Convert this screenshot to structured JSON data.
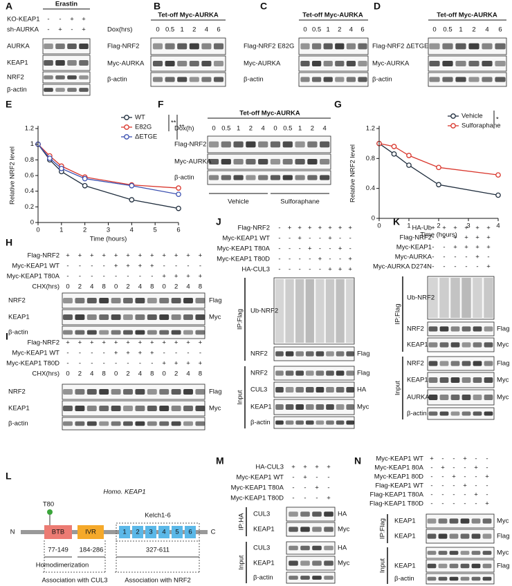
{
  "panels": [
    {
      "letter": "A",
      "title": "Erastin",
      "conditions": [
        {
          "label": "KO-KEAP1",
          "marks": [
            "-",
            "-",
            "+",
            "+"
          ]
        },
        {
          "label": "sh-AURKA",
          "marks": [
            "-",
            "+",
            "-",
            "+"
          ]
        }
      ],
      "rows": [
        {
          "label": "AURKA"
        },
        {
          "label": "KEAP1"
        },
        {
          "label": "NRF2"
        },
        {
          "label": "β-actin"
        }
      ]
    },
    {
      "letter": "B",
      "title": "Tet-off Myc-AURKA",
      "conditions": [
        {
          "label": "Dox(hrs)",
          "marks": [
            "0",
            "0.5",
            "1",
            "2",
            "4",
            "6"
          ]
        }
      ],
      "rows": [
        {
          "label": "Flag-NRF2"
        },
        {
          "label": "Myc-AURKA"
        },
        {
          "label": "β-actin"
        }
      ]
    },
    {
      "letter": "C",
      "title": "Tet-off Myc-AURKA",
      "conditions": [
        {
          "label": null,
          "marks": [
            "0",
            "0.5",
            "1",
            "2",
            "4",
            "6"
          ]
        }
      ],
      "rows": [
        {
          "label": "Flag-NRF2 E82G"
        },
        {
          "label": "Myc-AURKA"
        },
        {
          "label": "β-actin"
        }
      ]
    },
    {
      "letter": "D",
      "title": "Tet-off Myc-AURKA",
      "conditions": [
        {
          "label": null,
          "marks": [
            "0",
            "0.5",
            "1",
            "2",
            "4",
            "6"
          ]
        }
      ],
      "rows": [
        {
          "label": "Flag-NRF2 ΔETGE"
        },
        {
          "label": "Myc-AURKA"
        },
        {
          "label": "β-actin"
        }
      ]
    },
    {
      "letter": "F",
      "title": "Tet-off Myc-AURKA",
      "conditions": [
        {
          "label": "Dox(h)",
          "marks": [
            "0",
            "0.5",
            "1",
            "2",
            "4",
            "0",
            "0.5",
            "1",
            "2",
            "4"
          ]
        }
      ],
      "rows": [
        {
          "label": "Flag-NRF2"
        },
        {
          "label": "Myc-AURKA"
        },
        {
          "label": "β-actin"
        }
      ],
      "sub_labels": [
        "Vehicle",
        "Sulforaphane"
      ]
    },
    {
      "letter": "H",
      "conditions": [
        {
          "label": "Flag-NRF2",
          "marks": [
            "+",
            "+",
            "+",
            "+",
            "+",
            "+",
            "+",
            "+",
            "+",
            "+",
            "+",
            "+"
          ]
        },
        {
          "label": "Myc-KEAP1 WT",
          "marks": [
            "-",
            "-",
            "-",
            "-",
            "+",
            "+",
            "+",
            "+",
            "-",
            "-",
            "-",
            "-"
          ]
        },
        {
          "label": "Myc-KEAP1 T80A",
          "marks": [
            "-",
            "-",
            "-",
            "-",
            "-",
            "-",
            "-",
            "-",
            "+",
            "+",
            "+",
            "+"
          ]
        },
        {
          "label": "CHX(hrs)",
          "marks": [
            "0",
            "2",
            "4",
            "8",
            "0",
            "2",
            "4",
            "8",
            "0",
            "2",
            "4",
            "8"
          ]
        }
      ],
      "rows": [
        {
          "label": "NRF2",
          "tag": "Flag"
        },
        {
          "label": "KEAP1",
          "tag": "Myc"
        },
        {
          "label": "β-actin"
        }
      ]
    },
    {
      "letter": "I",
      "conditions": [
        {
          "label": "Flag-NRF2",
          "marks": [
            "+",
            "+",
            "+",
            "+",
            "+",
            "+",
            "+",
            "+",
            "+",
            "+",
            "+",
            "+"
          ]
        },
        {
          "label": "Myc-KEAP1 WT",
          "marks": [
            "-",
            "-",
            "-",
            "-",
            "+",
            "+",
            "+",
            "+",
            "-",
            "-",
            "-",
            "-"
          ]
        },
        {
          "label": "Myc-KEAP1 T80D",
          "marks": [
            "-",
            "-",
            "-",
            "-",
            "-",
            "-",
            "-",
            "-",
            "+",
            "+",
            "+",
            "+"
          ]
        },
        {
          "label": "CHX(hrs)",
          "marks": [
            "0",
            "2",
            "4",
            "8",
            "0",
            "2",
            "4",
            "8",
            "0",
            "2",
            "4",
            "8"
          ]
        }
      ],
      "rows": [
        {
          "label": "NRF2",
          "tag": "Flag"
        },
        {
          "label": "KEAP1",
          "tag": "Myc"
        },
        {
          "label": "β-actin"
        }
      ]
    },
    {
      "letter": "J",
      "conditions": [
        {
          "label": "Flag-NRF2",
          "marks": [
            "-",
            "+",
            "+",
            "+",
            "+",
            "+",
            "+",
            "+"
          ]
        },
        {
          "label": "Myc-KEAP1 WT",
          "marks": [
            "-",
            "-",
            "+",
            "-",
            "-",
            "+",
            "-",
            "-"
          ]
        },
        {
          "label": "Myc-KEAP1 T80A",
          "marks": [
            "-",
            "-",
            "-",
            "+",
            "-",
            "-",
            "+",
            "-"
          ]
        },
        {
          "label": "Myc-KEAP1 T80D",
          "marks": [
            "-",
            "-",
            "-",
            "-",
            "+",
            "-",
            "-",
            "+"
          ]
        },
        {
          "label": "HA-CUL3",
          "marks": [
            "-",
            "-",
            "-",
            "-",
            "-",
            "+",
            "+",
            "+"
          ]
        }
      ],
      "groups": [
        {
          "label": "IP:Flag",
          "rows": [
            {
              "label": "Ub-NRF2"
            },
            {
              "label": "NRF2",
              "tag": "Flag"
            }
          ]
        },
        {
          "label": "Input",
          "rows": [
            {
              "label": "NRF2",
              "tag": "Flag"
            },
            {
              "label": "CUL3",
              "tag": "HA"
            },
            {
              "label": "KEAP1",
              "tag": "Myc"
            },
            {
              "label": "β-actin"
            }
          ]
        }
      ]
    },
    {
      "letter": "K",
      "conditions": [
        {
          "label": "HA-Ub",
          "marks": [
            "+",
            "+",
            "+",
            "+",
            "+",
            "+"
          ]
        },
        {
          "label": "Flag-NRF2",
          "marks": [
            "-",
            "+",
            "+",
            "+",
            "+",
            "+"
          ]
        },
        {
          "label": "Myc-KEAP1",
          "marks": [
            "-",
            "-",
            "+",
            "+",
            "+",
            "+"
          ]
        },
        {
          "label": "Myc-AURKA",
          "marks": [
            "-",
            "-",
            "-",
            "-",
            "+",
            "-"
          ]
        },
        {
          "label": "Myc-AURKA D274N",
          "marks": [
            "-",
            "-",
            "-",
            "-",
            "-",
            "+"
          ]
        }
      ],
      "groups": [
        {
          "label": "IP:Flag",
          "rows": [
            {
              "label": "Ub-NRF2"
            },
            {
              "label": "NRF2",
              "tag": "Flag"
            },
            {
              "label": "KEAP1",
              "tag": "Myc"
            }
          ]
        },
        {
          "label": "Input",
          "rows": [
            {
              "label": "NRF2",
              "tag": "Flag"
            },
            {
              "label": "KEAP1",
              "tag": "Myc"
            },
            {
              "label": "AURKA",
              "tag": "Myc"
            },
            {
              "label": "β-actin"
            }
          ]
        }
      ]
    },
    {
      "letter": "M",
      "conditions": [
        {
          "label": "HA-CUL3",
          "marks": [
            "+",
            "+",
            "+",
            "+"
          ]
        },
        {
          "label": "Myc-KEAP1 WT",
          "marks": [
            "-",
            "+",
            "-",
            "-"
          ]
        },
        {
          "label": "Myc-KEAP1 T80A",
          "marks": [
            "-",
            "-",
            "+",
            "-"
          ]
        },
        {
          "label": "Myc-KEAP1 T80D",
          "marks": [
            "-",
            "-",
            "-",
            "+"
          ]
        }
      ],
      "groups": [
        {
          "label": "IP:HA",
          "rows": [
            {
              "label": "CUL3",
              "tag": "HA"
            },
            {
              "label": "KEAP1",
              "tag": "Myc"
            }
          ]
        },
        {
          "label": "Input",
          "rows": [
            {
              "label": "CUL3",
              "tag": "HA"
            },
            {
              "label": "KEAP1",
              "tag": "Myc"
            },
            {
              "label": "β-actin"
            }
          ]
        }
      ]
    },
    {
      "letter": "N",
      "conditions": [
        {
          "label": "Myc-KEAP1 WT",
          "marks": [
            "+",
            "-",
            "-",
            "+",
            "-",
            "-"
          ]
        },
        {
          "label": "Myc-KEAP1 80A",
          "marks": [
            "-",
            "+",
            "-",
            "-",
            "+",
            "-"
          ]
        },
        {
          "label": "Myc-KEAP1 80D",
          "marks": [
            "-",
            "-",
            "+",
            "-",
            "-",
            "+"
          ]
        },
        {
          "label": "Flag-KEAP1 WT",
          "marks": [
            "-",
            "-",
            "-",
            "+",
            "-",
            "-"
          ]
        },
        {
          "label": "Flag-KEAP1 T80A",
          "marks": [
            "-",
            "-",
            "-",
            "-",
            "+",
            "-"
          ]
        },
        {
          "label": "Flag-KEAP1 T80D",
          "marks": [
            "-",
            "-",
            "-",
            "-",
            "-",
            "+"
          ]
        }
      ],
      "groups": [
        {
          "label": "IP:Flag",
          "rows": [
            {
              "label": "KEAP1",
              "tag": "Myc"
            },
            {
              "label": "KEAP1",
              "tag": "Flag"
            }
          ]
        },
        {
          "label": "Input",
          "rows": [
            {
              "label": null,
              "tag": "Myc"
            },
            {
              "label": "KEAP1",
              "tag": "Flag"
            },
            {
              "label": "β-actin"
            }
          ]
        }
      ]
    }
  ],
  "chart_data": [
    {
      "type": "line",
      "panel_label": "E",
      "x_label": "Time (hours)",
      "y_label": "Relative NRF2 level",
      "x": [
        0,
        0.5,
        1,
        2,
        4,
        6
      ],
      "xlim": [
        0,
        6
      ],
      "xticks": [
        0,
        1,
        2,
        3,
        4,
        5,
        6
      ],
      "ylim": [
        0,
        1.2
      ],
      "yticks": [
        0,
        0.2,
        0.4,
        0.6,
        0.8,
        1,
        1.2
      ],
      "series": [
        {
          "name": "WT",
          "color": "#1f2d3d",
          "values": [
            1.0,
            0.8,
            0.65,
            0.47,
            0.29,
            0.18
          ]
        },
        {
          "name": "E82G",
          "color": "#d9352b",
          "values": [
            1.0,
            0.85,
            0.72,
            0.58,
            0.48,
            0.44
          ]
        },
        {
          "name": "ΔETGE",
          "color": "#3a4fb0",
          "values": [
            1.0,
            0.82,
            0.69,
            0.56,
            0.47,
            0.36
          ]
        }
      ],
      "annotations": [
        "**",
        "**"
      ]
    },
    {
      "type": "line",
      "panel_label": "G",
      "x_label": "Time (hours)",
      "y_label": "Relative NRF2 level",
      "x": [
        0,
        0.5,
        1,
        2,
        4
      ],
      "xlim": [
        0,
        4
      ],
      "xticks": [
        0,
        1,
        2,
        3,
        4
      ],
      "ylim": [
        0,
        1.2
      ],
      "yticks": [
        0,
        0.4,
        0.8,
        1.2
      ],
      "series": [
        {
          "name": "Vehicle",
          "color": "#1f2d3d",
          "values": [
            1.0,
            0.86,
            0.71,
            0.45,
            0.31
          ]
        },
        {
          "name": "Sulforaphane",
          "color": "#d9352b",
          "values": [
            1.0,
            0.96,
            0.84,
            0.68,
            0.58
          ]
        }
      ],
      "annotations": [
        "*"
      ]
    }
  ],
  "diagram": {
    "panel_label": "L",
    "title": "Homo. KEAP1",
    "site": "T80",
    "n_term": "N",
    "c_term": "C",
    "domains": [
      "BTB",
      "IVR"
    ],
    "kelch": [
      "1",
      "2",
      "3",
      "4",
      "5",
      "6"
    ],
    "kelch_label": "Kelch1-6",
    "ranges": [
      "77-149",
      "184-286",
      "327-611"
    ],
    "notes": [
      "Homodimerization",
      "Association with CUL3",
      "Association with NRF2"
    ]
  }
}
